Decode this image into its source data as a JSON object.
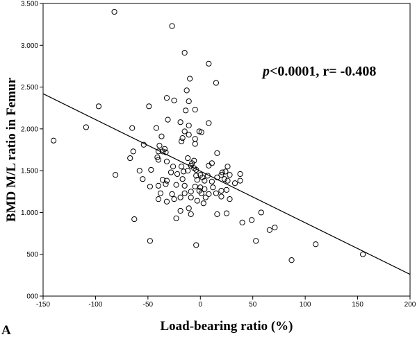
{
  "chart_data": {
    "type": "scatter",
    "title": "",
    "panel_label": "A",
    "xlabel": "Load-bearing ratio (%)",
    "ylabel": "BMD M/L ratio in Femur",
    "xlim": [
      -150,
      200
    ],
    "ylim": [
      0,
      3500
    ],
    "x_ticks": [
      -150,
      -100,
      -50,
      0,
      50,
      100,
      150,
      200
    ],
    "x_tick_labels": [
      "-150",
      "-100",
      "-50",
      "0",
      "50",
      "100",
      "150",
      "200"
    ],
    "y_ticks": [
      0,
      500,
      1000,
      1500,
      2000,
      2500,
      3000,
      3500
    ],
    "y_tick_labels": [
      "000",
      "500",
      "1.000",
      "1.500",
      "2.000",
      "2.500",
      "3.000",
      "3.500"
    ],
    "annotation": {
      "p_symbol": "p",
      "p_rest": "<0.0001, r= -0.408"
    },
    "fit_line": {
      "x": [
        -150,
        200
      ],
      "y": [
        2420,
        260
      ]
    },
    "grid": false,
    "legend": "none",
    "points": [
      [
        -82,
        3400
      ],
      [
        -27,
        3230
      ],
      [
        -15,
        2910
      ],
      [
        8,
        2780
      ],
      [
        -10,
        2600
      ],
      [
        15,
        2550
      ],
      [
        -13,
        2460
      ],
      [
        -32,
        2370
      ],
      [
        -25,
        2340
      ],
      [
        -11,
        2330
      ],
      [
        -97,
        2270
      ],
      [
        -49,
        2270
      ],
      [
        -5,
        2230
      ],
      [
        -14,
        2220
      ],
      [
        -31,
        2110
      ],
      [
        -19,
        2080
      ],
      [
        -11,
        2040
      ],
      [
        8,
        2070
      ],
      [
        -109,
        2020
      ],
      [
        -65,
        2010
      ],
      [
        -42,
        2010
      ],
      [
        -15,
        1970
      ],
      [
        -11,
        1930
      ],
      [
        -1,
        1970
      ],
      [
        -37,
        1910
      ],
      [
        -17,
        1890
      ],
      [
        -5,
        1880
      ],
      [
        1,
        1960
      ],
      [
        -140,
        1860
      ],
      [
        -54,
        1810
      ],
      [
        -39,
        1800
      ],
      [
        -18,
        1850
      ],
      [
        -5,
        1820
      ],
      [
        -40,
        1730
      ],
      [
        -36,
        1730
      ],
      [
        -34,
        1760
      ],
      [
        -33,
        1720
      ],
      [
        -64,
        1730
      ],
      [
        -67,
        1650
      ],
      [
        -12,
        1650
      ],
      [
        -41,
        1660
      ],
      [
        -40,
        1630
      ],
      [
        -6,
        1620
      ],
      [
        -32,
        1610
      ],
      [
        -8,
        1590
      ],
      [
        -9,
        1560
      ],
      [
        -26,
        1550
      ],
      [
        -18,
        1550
      ],
      [
        -6,
        1530
      ],
      [
        -4,
        1510
      ],
      [
        -12,
        1500
      ],
      [
        -58,
        1500
      ],
      [
        -47,
        1510
      ],
      [
        -16,
        1490
      ],
      [
        -28,
        1480
      ],
      [
        -22,
        1460
      ],
      [
        -81,
        1450
      ],
      [
        0,
        1450
      ],
      [
        -4,
        1440
      ],
      [
        8,
        1560
      ],
      [
        11,
        1590
      ],
      [
        26,
        1550
      ],
      [
        16,
        1710
      ],
      [
        21,
        1480
      ],
      [
        24,
        1490
      ],
      [
        20,
        1450
      ],
      [
        7,
        1440
      ],
      [
        16,
        1420
      ],
      [
        23,
        1400
      ],
      [
        28,
        1450
      ],
      [
        38,
        1460
      ],
      [
        2,
        1420
      ],
      [
        -55,
        1400
      ],
      [
        -36,
        1390
      ],
      [
        -32,
        1380
      ],
      [
        -17,
        1400
      ],
      [
        -3,
        1390
      ],
      [
        4,
        1380
      ],
      [
        11,
        1370
      ],
      [
        26,
        1380
      ],
      [
        33,
        1350
      ],
      [
        38,
        1380
      ],
      [
        -48,
        1310
      ],
      [
        -40,
        1320
      ],
      [
        -33,
        1340
      ],
      [
        -23,
        1330
      ],
      [
        -15,
        1320
      ],
      [
        -5,
        1310
      ],
      [
        0,
        1300
      ],
      [
        4,
        1280
      ],
      [
        12,
        1300
      ],
      [
        -1,
        1260
      ],
      [
        -38,
        1230
      ],
      [
        -27,
        1220
      ],
      [
        -9,
        1250
      ],
      [
        -15,
        1230
      ],
      [
        1,
        1230
      ],
      [
        8,
        1220
      ],
      [
        15,
        1230
      ],
      [
        20,
        1260
      ],
      [
        25,
        1270
      ],
      [
        -19,
        1180
      ],
      [
        -25,
        1160
      ],
      [
        -40,
        1160
      ],
      [
        5,
        1180
      ],
      [
        -9,
        1180
      ],
      [
        20,
        1190
      ],
      [
        28,
        1160
      ],
      [
        -3,
        1140
      ],
      [
        -32,
        1130
      ],
      [
        3,
        1110
      ],
      [
        -11,
        1050
      ],
      [
        -19,
        1020
      ],
      [
        -9,
        980
      ],
      [
        16,
        980
      ],
      [
        25,
        990
      ],
      [
        58,
        1000
      ],
      [
        -63,
        920
      ],
      [
        40,
        880
      ],
      [
        49,
        910
      ],
      [
        -23,
        930
      ],
      [
        66,
        790
      ],
      [
        71,
        820
      ],
      [
        -48,
        660
      ],
      [
        53,
        660
      ],
      [
        -4,
        610
      ],
      [
        110,
        620
      ],
      [
        155,
        500
      ],
      [
        87,
        430
      ]
    ]
  }
}
